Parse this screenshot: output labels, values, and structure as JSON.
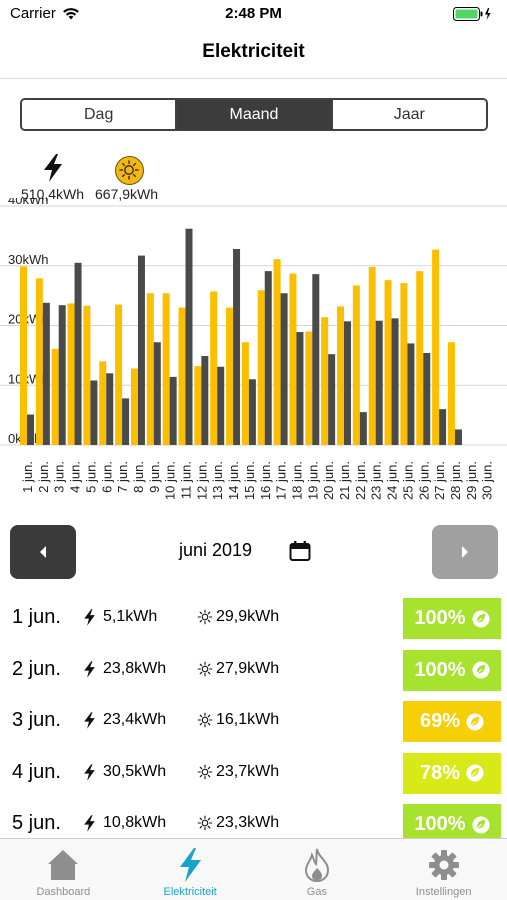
{
  "status_bar": {
    "carrier": "Carrier",
    "time": "2:48 PM"
  },
  "nav": {
    "title": "Elektriciteit"
  },
  "segments": [
    {
      "label": "Dag",
      "active": false
    },
    {
      "label": "Maand",
      "active": true
    },
    {
      "label": "Jaar",
      "active": false
    }
  ],
  "summary": {
    "electricity": "510,4kWh",
    "solar": "667,9kWh"
  },
  "chart_data": {
    "type": "bar",
    "title": "",
    "xlabel": "",
    "ylabel": "",
    "ylim": [
      0,
      40
    ],
    "y_ticks": [
      "0kWh",
      "10kWh",
      "20kWh",
      "30kWh",
      "40kWh"
    ],
    "categories": [
      "1 jun.",
      "2 jun.",
      "3 jun.",
      "4 jun.",
      "5 jun.",
      "6 jun.",
      "7 jun.",
      "8 jun.",
      "9 jun.",
      "10 jun.",
      "11 jun.",
      "12 jun.",
      "13 jun.",
      "14 jun.",
      "15 jun.",
      "16 jun.",
      "17 jun.",
      "18 jun.",
      "19 jun.",
      "20 jun.",
      "21 jun.",
      "22 jun.",
      "23 jun.",
      "24 jun.",
      "25 jun.",
      "26 jun.",
      "27 jun.",
      "28 jun.",
      "29 jun.",
      "30 jun."
    ],
    "series": [
      {
        "values": [
          29.9,
          27.9,
          16.1,
          23.7,
          23.3,
          14.0,
          23.5,
          12.8,
          25.4,
          25.4,
          23.0,
          13.2,
          25.7,
          23.0,
          17.2,
          25.9,
          31.1,
          28.7,
          19.0,
          21.4,
          23.2,
          26.7,
          29.8,
          27.6,
          27.1,
          29.1,
          32.7,
          17.2,
          0,
          0
        ],
        "color": "#fcbf00"
      },
      {
        "values": [
          5.1,
          23.8,
          23.4,
          30.5,
          10.8,
          12.0,
          7.8,
          31.7,
          17.2,
          11.4,
          36.2,
          14.9,
          13.1,
          32.8,
          11.0,
          29.1,
          25.4,
          18.9,
          28.6,
          15.2,
          20.7,
          5.5,
          20.8,
          21.2,
          17.0,
          15.4,
          6.0,
          2.6,
          0,
          0
        ],
        "color": "#4a4a4a"
      }
    ],
    "grid": true,
    "legend": "none"
  },
  "month_nav": {
    "label": "juni 2019"
  },
  "days": [
    {
      "date": "1 jun.",
      "electricity": "5,1kWh",
      "solar": "29,9kWh",
      "percent": "100%",
      "color": "#a6e22e"
    },
    {
      "date": "2 jun.",
      "electricity": "23,8kWh",
      "solar": "27,9kWh",
      "percent": "100%",
      "color": "#a6e22e"
    },
    {
      "date": "3 jun.",
      "electricity": "23,4kWh",
      "solar": "16,1kWh",
      "percent": "69%",
      "color": "#f7cf06"
    },
    {
      "date": "4 jun.",
      "electricity": "30,5kWh",
      "solar": "23,7kWh",
      "percent": "78%",
      "color": "#d9e817"
    },
    {
      "date": "5 jun.",
      "electricity": "10,8kWh",
      "solar": "23,3kWh",
      "percent": "100%",
      "color": "#a6e22e"
    }
  ],
  "tabs": [
    {
      "label": "Dashboard",
      "icon": "house-icon",
      "active": false
    },
    {
      "label": "Elektriciteit",
      "icon": "lightning-icon",
      "active": true
    },
    {
      "label": "Gas",
      "icon": "flame-icon",
      "active": false
    },
    {
      "label": "Instellingen",
      "icon": "gear-icon",
      "active": false
    }
  ],
  "colors": {
    "solar_bar": "#fcbf00",
    "electricity_bar": "#4a4a4a",
    "accent": "#19a3c8",
    "segment_active": "#3c3c3c"
  }
}
